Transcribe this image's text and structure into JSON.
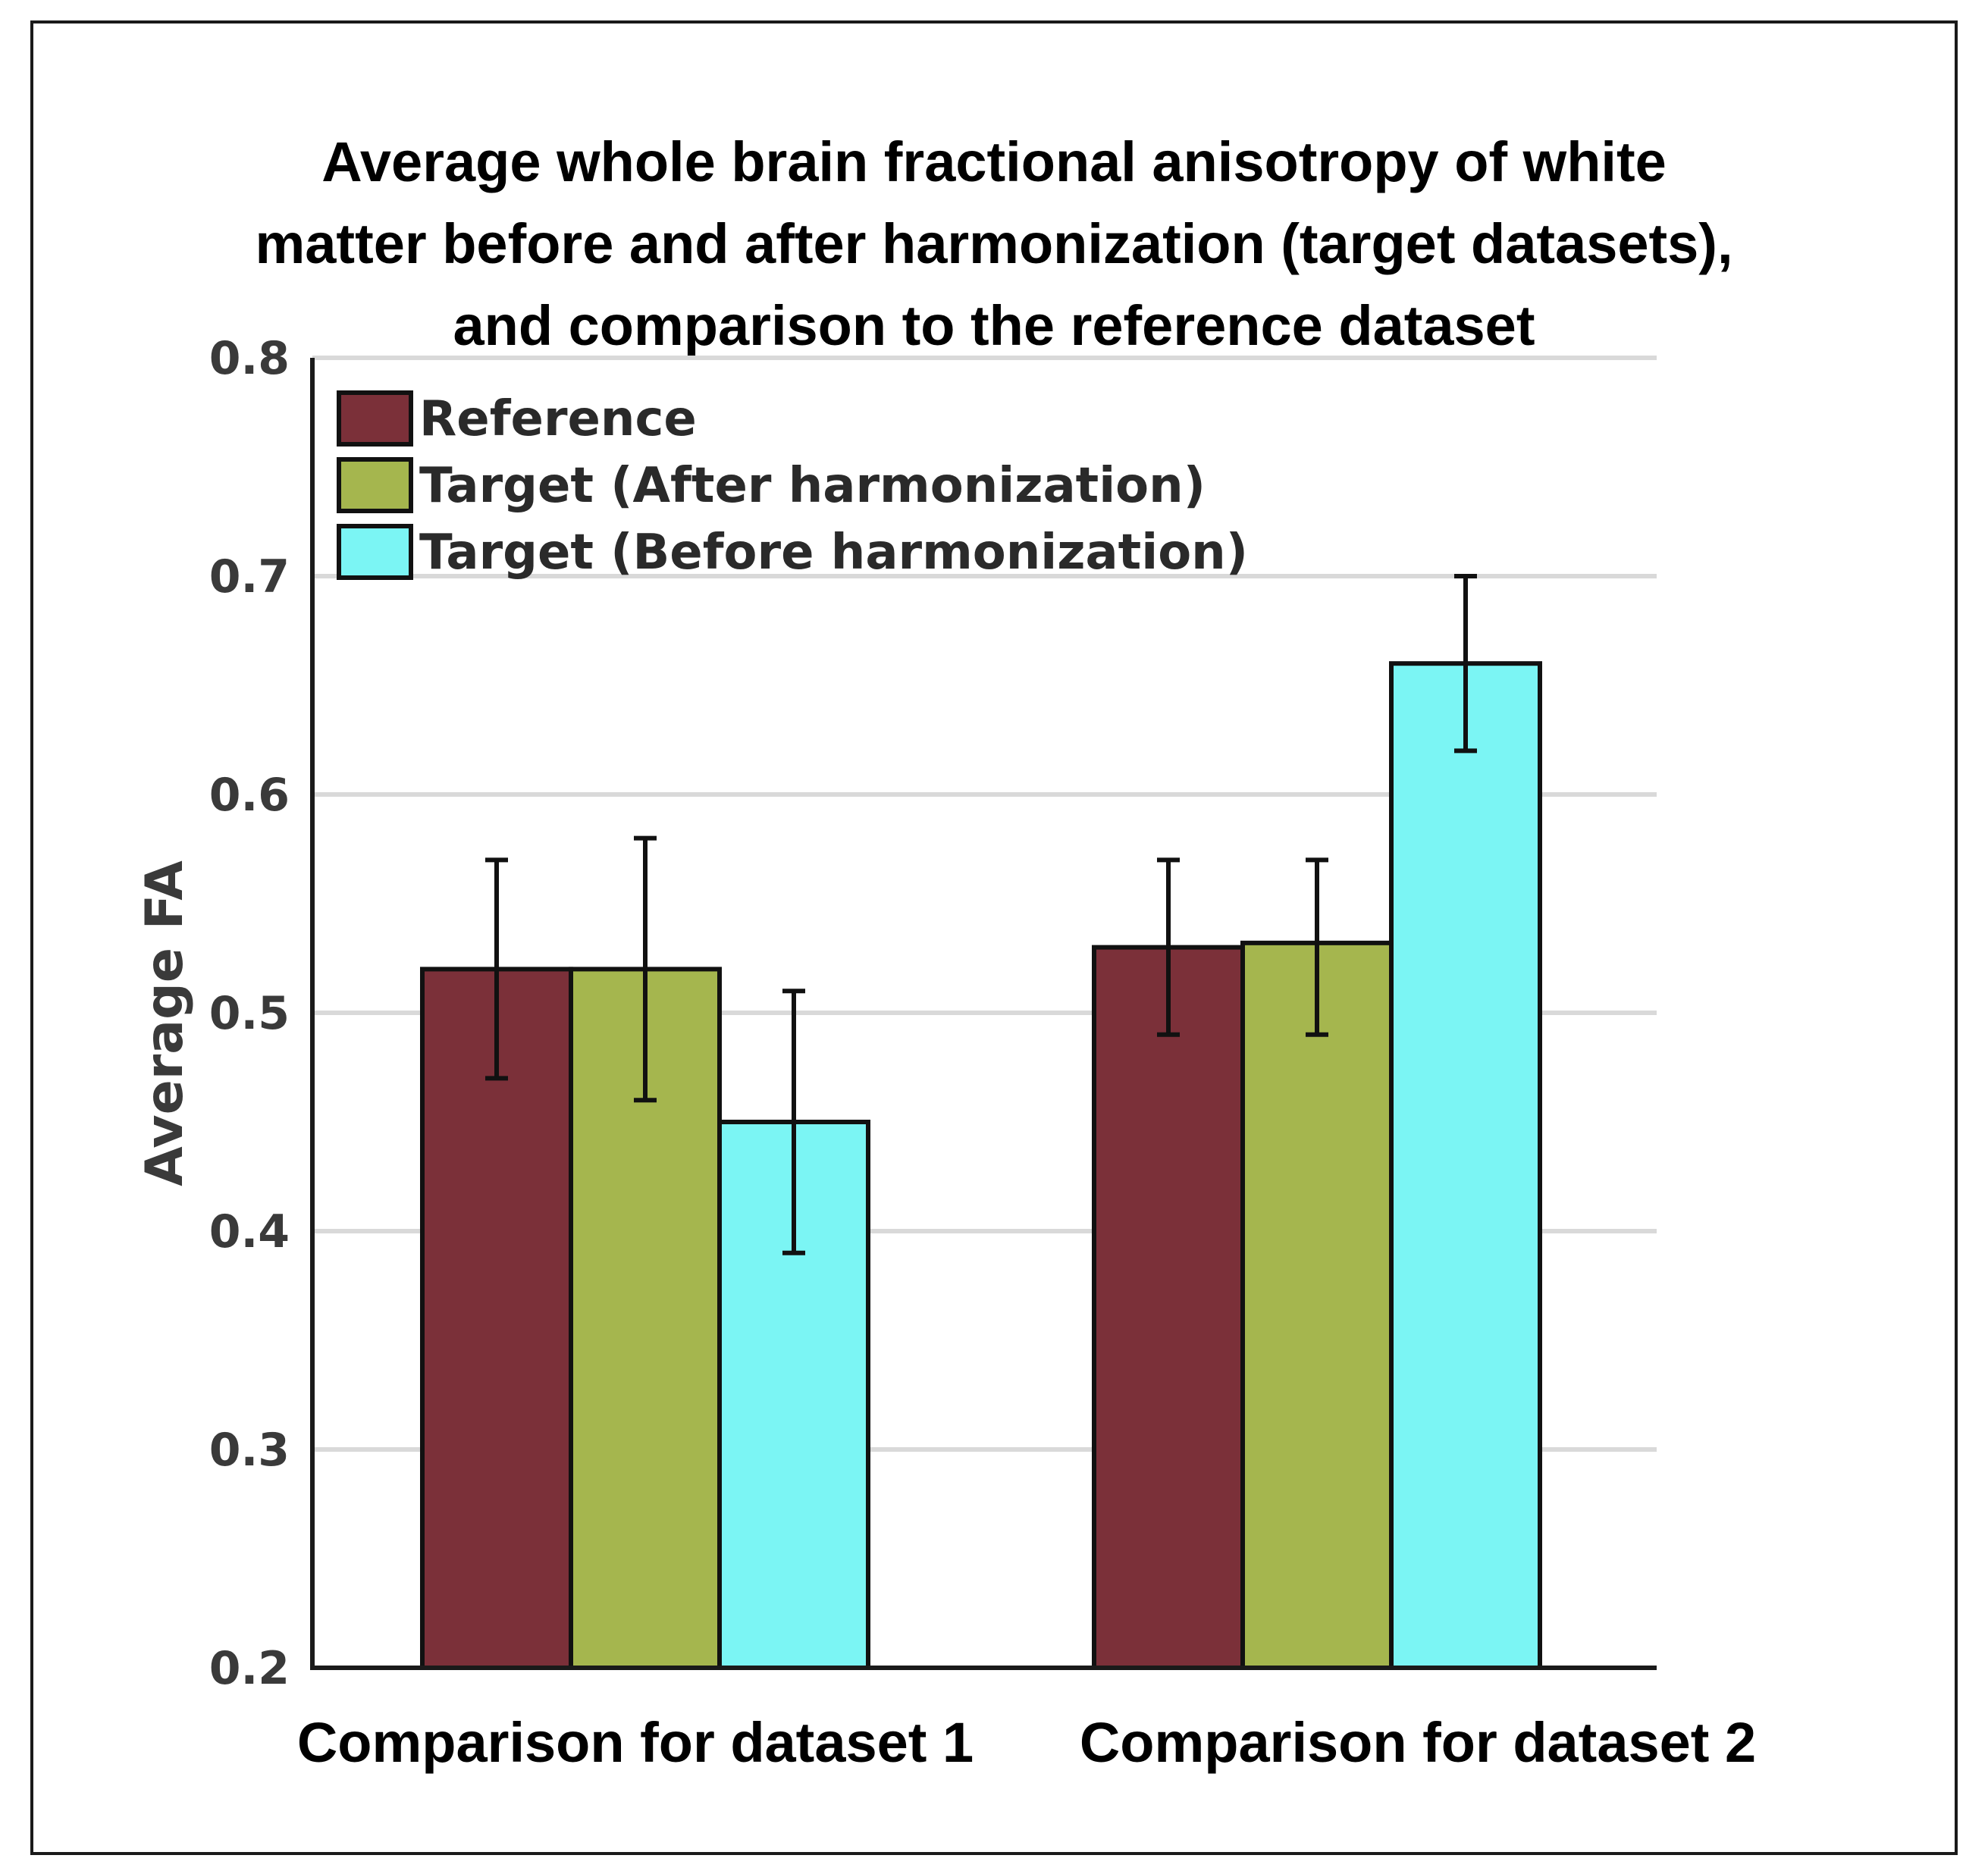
{
  "chart_data": {
    "type": "bar",
    "title_lines": [
      "Average whole brain fractional anisotropy of white",
      "matter before and after harmonization (target datasets),",
      "and comparison to the reference dataset"
    ],
    "xlabel": "",
    "ylabel": "Average FA",
    "ylim": [
      0.2,
      0.8
    ],
    "yticks": [
      "0.2",
      "0.3",
      "0.4",
      "0.5",
      "0.6",
      "0.7",
      "0.8"
    ],
    "grid": true,
    "legend_position": "top-left",
    "categories": [
      "Comparison for dataset 1",
      "Comparison for dataset 2"
    ],
    "series": [
      {
        "name": "Reference",
        "color": "#7b3039",
        "values": [
          0.52,
          0.53
        ],
        "error_low": [
          0.47,
          0.49
        ],
        "error_high": [
          0.57,
          0.57
        ]
      },
      {
        "name": "Target (After harmonization)",
        "color": "#a5b64e",
        "values": [
          0.52,
          0.532
        ],
        "error_low": [
          0.46,
          0.49
        ],
        "error_high": [
          0.58,
          0.57
        ]
      },
      {
        "name": "Target (Before harmonization)",
        "color": "#7bf5f4",
        "values": [
          0.45,
          0.66
        ],
        "error_low": [
          0.39,
          0.62
        ],
        "error_high": [
          0.51,
          0.7
        ]
      }
    ]
  }
}
